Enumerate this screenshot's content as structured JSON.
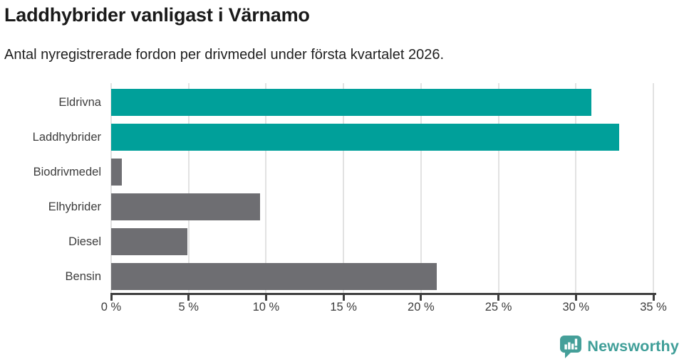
{
  "header": {
    "title": "Laddhybrider vanligast i Värnamo",
    "subtitle": "Antal nyregistrerade fordon per drivmedel under första kvartalet 2026."
  },
  "chart_data": {
    "type": "bar",
    "orientation": "horizontal",
    "title": "Laddhybrider vanligast i Värnamo",
    "subtitle": "Antal nyregistrerade fordon per drivmedel under första kvartalet 2026.",
    "categories": [
      "Eldrivna",
      "Laddhybrider",
      "Biodrivmedel",
      "Elhybrider",
      "Diesel",
      "Bensin"
    ],
    "values": [
      31,
      32.8,
      0.7,
      9.6,
      4.9,
      21
    ],
    "unit": "%",
    "bar_colors": [
      "#00a09a",
      "#00a09a",
      "#6e6e72",
      "#6e6e72",
      "#6e6e72",
      "#6e6e72"
    ],
    "xlabel": "",
    "ylabel": "",
    "xlim": [
      0,
      35
    ],
    "x_ticks": [
      0,
      5,
      10,
      15,
      20,
      25,
      30,
      35
    ],
    "x_tick_labels": [
      "0 %",
      "5 %",
      "10 %",
      "15 %",
      "20 %",
      "25 %",
      "30 %",
      "35 %"
    ],
    "grid": "vertical-gridlines-on",
    "legend": "none"
  },
  "colors": {
    "teal_bar": "#00a09a",
    "gray_bar": "#6e6e72",
    "axis": "#3e3e3e",
    "gridline": "#e2e2e2",
    "logo_teal": "#3f9e98",
    "background": "#ffffff"
  },
  "footer": {
    "brand": "Newsworthy"
  }
}
